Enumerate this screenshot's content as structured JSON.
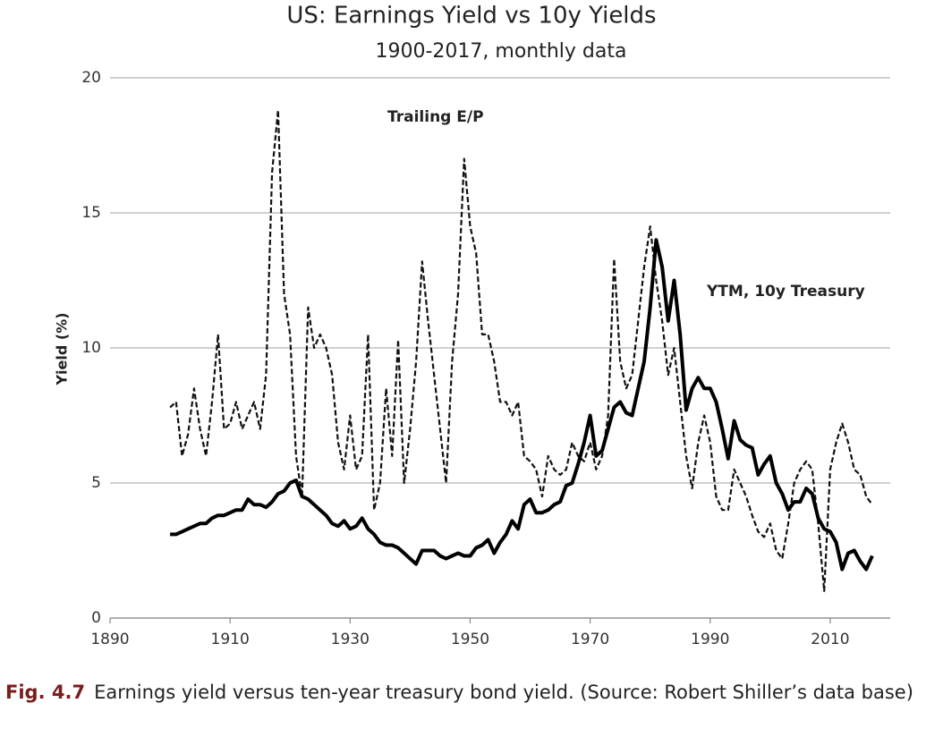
{
  "chart_data": {
    "type": "line",
    "title": "US: Earnings Yield vs 10y Yields",
    "subtitle": "1900-2017, monthly data",
    "y_label": "Yield (%)",
    "annotations": [
      "Trailing  E/P",
      "YTM,  10y Treasury"
    ],
    "xlim": [
      1890,
      2020
    ],
    "xticks": [
      1890,
      1910,
      1930,
      1950,
      1970,
      1990,
      2010
    ],
    "ylim": [
      0,
      20
    ],
    "yticks": [
      0,
      5,
      10,
      15,
      20
    ],
    "grid": true,
    "x": [
      1900,
      1901,
      1902,
      1903,
      1904,
      1905,
      1906,
      1907,
      1908,
      1909,
      1910,
      1911,
      1912,
      1913,
      1914,
      1915,
      1916,
      1917,
      1918,
      1919,
      1920,
      1921,
      1922,
      1923,
      1924,
      1925,
      1926,
      1927,
      1928,
      1929,
      1930,
      1931,
      1932,
      1933,
      1934,
      1935,
      1936,
      1937,
      1938,
      1939,
      1940,
      1941,
      1942,
      1943,
      1944,
      1945,
      1946,
      1947,
      1948,
      1949,
      1950,
      1951,
      1952,
      1953,
      1954,
      1955,
      1956,
      1957,
      1958,
      1959,
      1960,
      1961,
      1962,
      1963,
      1964,
      1965,
      1966,
      1967,
      1968,
      1969,
      1970,
      1971,
      1972,
      1973,
      1974,
      1975,
      1976,
      1977,
      1978,
      1979,
      1980,
      1981,
      1982,
      1983,
      1984,
      1985,
      1986,
      1987,
      1988,
      1989,
      1990,
      1991,
      1992,
      1993,
      1994,
      1995,
      1996,
      1997,
      1998,
      1999,
      2000,
      2001,
      2002,
      2003,
      2004,
      2005,
      2006,
      2007,
      2008,
      2009,
      2010,
      2011,
      2012,
      2013,
      2014,
      2015,
      2016,
      2017
    ],
    "series": [
      {
        "color": "#111111",
        "line_style": "dashed",
        "values": [
          7.8,
          8.0,
          6.0,
          6.8,
          8.5,
          7.0,
          6.0,
          8.0,
          10.5,
          7.0,
          7.2,
          8.0,
          7.0,
          7.5,
          8.0,
          7.0,
          9.0,
          16.5,
          18.8,
          12.0,
          10.5,
          6.0,
          4.5,
          11.5,
          10.0,
          10.5,
          10.0,
          9.0,
          6.5,
          5.5,
          7.5,
          5.5,
          6.0,
          10.5,
          4.0,
          5.0,
          8.5,
          6.0,
          10.3,
          5.0,
          7.0,
          9.5,
          13.2,
          11.0,
          9.0,
          7.0,
          5.0,
          9.5,
          12.0,
          17.0,
          14.5,
          13.5,
          10.5,
          10.5,
          9.5,
          8.0,
          8.0,
          7.5,
          8.0,
          6.0,
          5.8,
          5.5,
          4.5,
          6.0,
          5.5,
          5.3,
          5.5,
          6.5,
          6.0,
          5.8,
          6.5,
          5.5,
          6.0,
          7.5,
          13.3,
          9.5,
          8.5,
          9.0,
          11.0,
          13.0,
          14.5,
          12.5,
          11.0,
          9.0,
          10.0,
          8.0,
          6.0,
          4.8,
          6.5,
          7.5,
          6.5,
          4.5,
          4.0,
          4.0,
          5.5,
          5.0,
          4.5,
          3.8,
          3.2,
          3.0,
          3.5,
          2.5,
          2.2,
          3.5,
          5.0,
          5.5,
          5.8,
          5.5,
          3.5,
          1.0,
          5.5,
          6.5,
          7.2,
          6.5,
          5.5,
          5.3,
          4.5,
          4.2
        ]
      },
      {
        "color": "#000000",
        "line_style": "solid",
        "values": [
          3.1,
          3.1,
          3.2,
          3.3,
          3.4,
          3.5,
          3.5,
          3.7,
          3.8,
          3.8,
          3.9,
          4.0,
          4.0,
          4.4,
          4.2,
          4.2,
          4.1,
          4.3,
          4.6,
          4.7,
          5.0,
          5.1,
          4.5,
          4.4,
          4.2,
          4.0,
          3.8,
          3.5,
          3.4,
          3.6,
          3.3,
          3.4,
          3.7,
          3.3,
          3.1,
          2.8,
          2.7,
          2.7,
          2.6,
          2.4,
          2.2,
          2.0,
          2.5,
          2.5,
          2.5,
          2.3,
          2.2,
          2.3,
          2.4,
          2.3,
          2.3,
          2.6,
          2.7,
          2.9,
          2.4,
          2.8,
          3.1,
          3.6,
          3.3,
          4.2,
          4.4,
          3.9,
          3.9,
          4.0,
          4.2,
          4.3,
          4.9,
          5.0,
          5.7,
          6.5,
          7.5,
          6.0,
          6.2,
          7.0,
          7.8,
          8.0,
          7.6,
          7.5,
          8.5,
          9.5,
          11.5,
          14.0,
          13.0,
          11.0,
          12.5,
          10.5,
          7.7,
          8.5,
          8.9,
          8.5,
          8.5,
          8.0,
          7.0,
          5.9,
          7.3,
          6.6,
          6.4,
          6.3,
          5.3,
          5.7,
          6.0,
          5.0,
          4.6,
          4.0,
          4.3,
          4.3,
          4.8,
          4.6,
          3.7,
          3.3,
          3.2,
          2.8,
          1.8,
          2.4,
          2.5,
          2.1,
          1.8,
          2.3
        ]
      }
    ]
  },
  "caption": {
    "label": "Fig. 4.7",
    "text": "Earnings yield versus ten-year treasury bond yield. (Source: Robert Shiller’s data base)"
  }
}
